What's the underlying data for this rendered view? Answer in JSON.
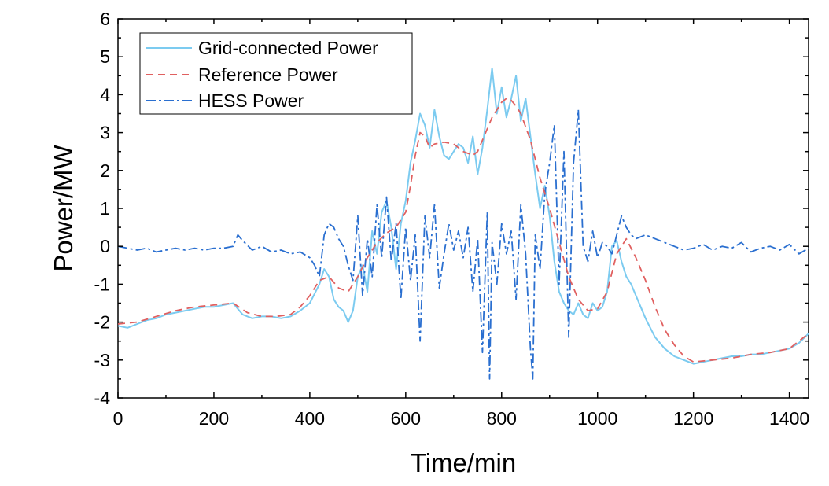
{
  "chart_data": {
    "type": "line",
    "xlabel": "Time/min",
    "ylabel": "Power/MW",
    "xlim": [
      0,
      1440
    ],
    "ylim": [
      -4,
      6
    ],
    "xticks": [
      0,
      200,
      400,
      600,
      800,
      1000,
      1200,
      1400
    ],
    "yticks": [
      -4,
      -3,
      -2,
      -1,
      0,
      1,
      2,
      3,
      4,
      5,
      6
    ],
    "grid": false,
    "legend_position": "top-left",
    "series": [
      {
        "name": "Grid-connected Power",
        "color": "#7ccbf0",
        "style": "solid",
        "x": [
          0,
          20,
          40,
          60,
          80,
          100,
          120,
          140,
          160,
          180,
          200,
          220,
          240,
          260,
          280,
          300,
          320,
          340,
          360,
          380,
          400,
          420,
          430,
          440,
          450,
          460,
          470,
          480,
          490,
          500,
          510,
          520,
          530,
          540,
          550,
          560,
          570,
          580,
          590,
          600,
          610,
          620,
          630,
          640,
          650,
          660,
          670,
          680,
          690,
          700,
          710,
          720,
          730,
          740,
          750,
          760,
          770,
          780,
          790,
          800,
          810,
          820,
          830,
          840,
          850,
          860,
          870,
          880,
          890,
          900,
          910,
          920,
          930,
          940,
          950,
          960,
          970,
          980,
          990,
          1000,
          1010,
          1020,
          1030,
          1040,
          1050,
          1060,
          1070,
          1080,
          1090,
          1100,
          1120,
          1140,
          1160,
          1180,
          1200,
          1220,
          1240,
          1260,
          1280,
          1300,
          1320,
          1340,
          1360,
          1380,
          1400,
          1420,
          1440
        ],
        "y": [
          -2.1,
          -2.15,
          -2.05,
          -1.95,
          -1.9,
          -1.8,
          -1.75,
          -1.7,
          -1.65,
          -1.6,
          -1.6,
          -1.55,
          -1.5,
          -1.8,
          -1.9,
          -1.85,
          -1.85,
          -1.9,
          -1.85,
          -1.7,
          -1.5,
          -1.0,
          -0.6,
          -0.8,
          -1.4,
          -1.6,
          -1.7,
          -2.0,
          -1.7,
          -0.8,
          -0.5,
          -1.2,
          0.4,
          -0.2,
          0.9,
          1.2,
          0.5,
          -0.6,
          0.6,
          1.2,
          2.2,
          2.8,
          3.5,
          3.2,
          2.6,
          3.6,
          2.9,
          2.4,
          2.3,
          2.5,
          2.7,
          2.6,
          2.2,
          2.9,
          1.9,
          2.6,
          3.6,
          4.7,
          3.5,
          4.2,
          3.4,
          3.9,
          4.5,
          3.3,
          3.9,
          2.9,
          1.9,
          1.0,
          1.6,
          0.8,
          -0.4,
          -1.2,
          -1.5,
          -1.7,
          -1.8,
          -1.5,
          -1.8,
          -1.9,
          -1.5,
          -1.7,
          -1.6,
          -1.2,
          0.0,
          0.15,
          -0.4,
          -0.8,
          -1.0,
          -1.3,
          -1.6,
          -1.9,
          -2.4,
          -2.7,
          -2.9,
          -3.0,
          -3.1,
          -3.05,
          -3.0,
          -2.95,
          -2.9,
          -2.9,
          -2.85,
          -2.85,
          -2.8,
          -2.75,
          -2.7,
          -2.55,
          -2.3
        ]
      },
      {
        "name": "Reference Power",
        "color": "#e06060",
        "style": "dashed",
        "x": [
          0,
          40,
          80,
          120,
          160,
          200,
          240,
          270,
          300,
          330,
          360,
          380,
          400,
          420,
          440,
          460,
          480,
          500,
          520,
          540,
          560,
          580,
          600,
          610,
          620,
          630,
          640,
          650,
          660,
          680,
          700,
          720,
          740,
          750,
          760,
          770,
          780,
          790,
          800,
          810,
          820,
          830,
          840,
          860,
          880,
          900,
          920,
          940,
          960,
          980,
          1000,
          1020,
          1040,
          1060,
          1080,
          1100,
          1120,
          1140,
          1160,
          1180,
          1200,
          1240,
          1280,
          1320,
          1360,
          1400,
          1440
        ],
        "y": [
          -2.05,
          -2.0,
          -1.85,
          -1.7,
          -1.6,
          -1.55,
          -1.5,
          -1.75,
          -1.85,
          -1.85,
          -1.8,
          -1.6,
          -1.3,
          -0.9,
          -0.8,
          -1.1,
          -1.2,
          -0.8,
          -0.3,
          0.1,
          0.35,
          0.5,
          0.9,
          1.6,
          2.4,
          3.0,
          2.9,
          2.6,
          2.7,
          2.75,
          2.7,
          2.5,
          2.4,
          2.5,
          2.8,
          3.1,
          3.4,
          3.6,
          3.8,
          3.9,
          3.85,
          3.7,
          3.5,
          2.8,
          1.8,
          1.0,
          0.1,
          -0.8,
          -1.4,
          -1.7,
          -1.65,
          -1.2,
          -0.2,
          0.2,
          -0.3,
          -0.9,
          -1.6,
          -2.2,
          -2.6,
          -2.9,
          -3.05,
          -3.0,
          -2.95,
          -2.85,
          -2.8,
          -2.7,
          -2.3
        ]
      },
      {
        "name": "HESS Power",
        "color": "#2a6fd0",
        "style": "dashdot",
        "x": [
          0,
          20,
          40,
          60,
          80,
          100,
          120,
          140,
          160,
          180,
          200,
          220,
          240,
          250,
          260,
          280,
          300,
          320,
          340,
          360,
          380,
          400,
          410,
          420,
          430,
          440,
          450,
          460,
          470,
          480,
          490,
          500,
          510,
          520,
          530,
          540,
          550,
          560,
          570,
          580,
          590,
          600,
          610,
          620,
          630,
          640,
          650,
          660,
          670,
          680,
          690,
          700,
          710,
          720,
          730,
          740,
          750,
          760,
          770,
          775,
          780,
          790,
          800,
          810,
          820,
          830,
          840,
          850,
          860,
          865,
          870,
          880,
          890,
          900,
          910,
          920,
          930,
          940,
          950,
          960,
          970,
          980,
          990,
          1000,
          1010,
          1020,
          1030,
          1040,
          1050,
          1060,
          1070,
          1080,
          1100,
          1120,
          1140,
          1160,
          1180,
          1200,
          1220,
          1240,
          1260,
          1280,
          1300,
          1320,
          1340,
          1360,
          1380,
          1400,
          1420,
          1440
        ],
        "y": [
          0.0,
          -0.05,
          -0.1,
          -0.05,
          -0.15,
          -0.1,
          -0.05,
          -0.1,
          -0.05,
          -0.1,
          -0.05,
          -0.05,
          0.0,
          0.3,
          0.15,
          -0.1,
          0.0,
          -0.15,
          -0.1,
          -0.2,
          -0.15,
          -0.3,
          -0.5,
          -0.8,
          0.3,
          0.6,
          0.5,
          0.2,
          0.0,
          -0.5,
          -0.9,
          0.8,
          -1.3,
          0.2,
          -0.8,
          1.1,
          -0.3,
          1.3,
          -0.4,
          0.6,
          -1.4,
          0.5,
          -0.9,
          0.3,
          -2.5,
          0.8,
          -0.3,
          1.1,
          -1.1,
          -0.2,
          0.6,
          -0.1,
          0.4,
          -0.3,
          0.5,
          -1.2,
          0.2,
          -2.8,
          0.9,
          -3.5,
          0.1,
          -1.0,
          0.6,
          -0.2,
          0.4,
          -1.4,
          1.1,
          -0.2,
          -2.7,
          -3.5,
          0.3,
          -0.6,
          1.4,
          2.2,
          3.2,
          -1.0,
          2.5,
          -2.4,
          2.2,
          3.6,
          0.0,
          -0.4,
          0.4,
          -0.3,
          0.1,
          0.0,
          -0.2,
          0.3,
          0.8,
          0.5,
          0.3,
          0.2,
          0.3,
          0.2,
          0.1,
          0.0,
          -0.1,
          -0.05,
          0.05,
          -0.1,
          0.0,
          -0.05,
          0.1,
          -0.15,
          -0.05,
          0.0,
          -0.1,
          0.05,
          -0.2,
          -0.05
        ]
      }
    ]
  }
}
